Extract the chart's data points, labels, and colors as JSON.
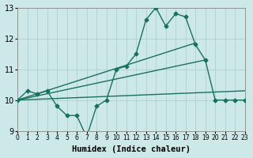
{
  "bg_color": "#cce8e8",
  "grid_color": "#aacccc",
  "line_color": "#1a7060",
  "x_min": 0,
  "x_max": 23,
  "y_min": 9,
  "y_max": 13,
  "xlabel": "Humidex (Indice chaleur)",
  "xlabel_fontsize": 7.5,
  "tick_fontsize": 7,
  "line_width": 1.0,
  "marker": "D",
  "marker_size": 2.5,
  "series1_x": [
    0,
    1,
    2,
    3,
    4,
    5,
    6,
    7,
    8,
    9,
    10,
    11,
    12,
    13,
    14,
    15,
    16,
    17,
    18,
    19,
    20,
    21,
    22,
    23
  ],
  "series1_y": [
    10.0,
    10.3,
    10.2,
    10.3,
    9.8,
    9.5,
    9.5,
    8.8,
    9.8,
    10.0,
    11.0,
    11.1,
    11.5,
    12.6,
    13.0,
    12.4,
    12.8,
    12.7,
    11.8,
    11.3,
    10.0,
    10.0,
    10.0,
    10.0
  ],
  "line2_x": [
    0,
    23
  ],
  "line2_y": [
    10.0,
    10.3
  ],
  "line3_x": [
    0,
    19
  ],
  "line3_y": [
    10.0,
    11.3
  ],
  "line4_x": [
    0,
    18
  ],
  "line4_y": [
    10.0,
    11.85
  ]
}
